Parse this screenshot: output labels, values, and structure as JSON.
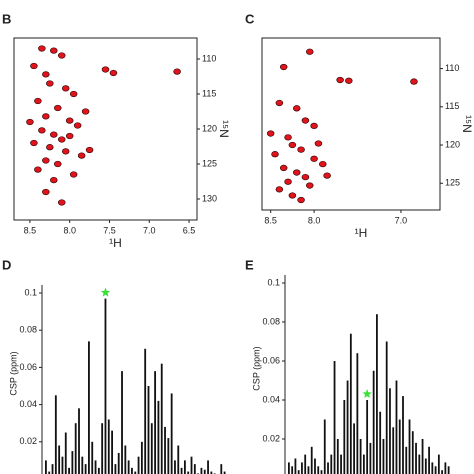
{
  "chart_data": [
    {
      "type": "scatter",
      "panel": "B",
      "xlabel": "¹H",
      "ylabel": "¹⁵N",
      "reverse_x": true,
      "color": "#e3131b",
      "edge": "#3a0a0a",
      "xlim": [
        8.7,
        6.4
      ],
      "ylim": [
        107,
        133
      ],
      "xticks": [
        8.5,
        {
          "value": 8,
          "label": "8.0"
        },
        7.5,
        {
          "value": 7,
          "label": "7.0"
        },
        6.5
      ],
      "yticks": [
        110,
        115,
        120,
        125,
        130
      ],
      "x": [
        8.35,
        8.2,
        8.1,
        8.45,
        8.3,
        8.25,
        8.05,
        7.95,
        8.4,
        8.15,
        8.3,
        8.0,
        7.9,
        8.35,
        8.2,
        8.1,
        8.45,
        8.25,
        8.05,
        7.85,
        8.3,
        8.15,
        8.4,
        7.95,
        8.2,
        7.55,
        7.45,
        6.65,
        7.8,
        8.0,
        8.5,
        8.3,
        7.75,
        8.1
      ],
      "y": [
        108.5,
        108.8,
        109.5,
        111.0,
        112.2,
        113.5,
        114.2,
        115.0,
        116.0,
        117.0,
        118.2,
        118.8,
        119.5,
        120.2,
        120.8,
        121.5,
        122.0,
        122.6,
        123.2,
        123.8,
        124.5,
        125.0,
        125.8,
        126.5,
        127.3,
        111.5,
        112.0,
        111.8,
        117.5,
        121.0,
        119.0,
        129.0,
        123.0,
        130.5
      ]
    },
    {
      "type": "scatter",
      "panel": "C",
      "xlabel": "¹H",
      "ylabel": "¹⁵N",
      "reverse_x": true,
      "color": "#e3131b",
      "edge": "#3a0a0a",
      "xlim": [
        8.6,
        6.55
      ],
      "ylim": [
        106,
        128.5
      ],
      "xticks": [
        8.5,
        {
          "value": 8,
          "label": "8.0"
        },
        {
          "value": 7,
          "label": "7.0"
        }
      ],
      "yticks": [
        110,
        115,
        120,
        125
      ],
      "x": [
        8.35,
        8.05,
        8.4,
        8.2,
        8.1,
        8.3,
        8.25,
        8.15,
        8.45,
        8.0,
        7.9,
        8.35,
        8.2,
        8.1,
        8.3,
        8.05,
        8.4,
        7.95,
        8.25,
        8.15,
        7.7,
        7.6,
        6.85,
        7.85,
        8.5,
        8.0
      ],
      "y": [
        109.8,
        107.8,
        114.5,
        115.2,
        116.8,
        119.0,
        120.0,
        120.6,
        121.2,
        121.8,
        122.5,
        123.0,
        123.6,
        124.2,
        124.8,
        125.3,
        125.8,
        119.8,
        126.6,
        127.2,
        111.5,
        111.6,
        111.7,
        124.0,
        118.5,
        117.5
      ]
    },
    {
      "type": "bar",
      "panel": "D",
      "ylabel": "CSP (ppm)",
      "color": "#111111",
      "ylim": [
        0,
        0.1
      ],
      "yticks": [
        0.02,
        0.04,
        0.06,
        0.08,
        0.1
      ],
      "highlight": {
        "index": 18,
        "color": "#3be03b"
      },
      "values": [
        0.01,
        0.004,
        0.008,
        0.045,
        0.018,
        0.012,
        0.025,
        0.006,
        0.015,
        0.03,
        0.038,
        0.012,
        0.008,
        0.074,
        0.02,
        0.01,
        0.006,
        0.03,
        0.097,
        0.032,
        0.026,
        0.008,
        0.014,
        0.058,
        0.018,
        0.01,
        0.006,
        0.004,
        0.012,
        0.02,
        0.07,
        0.05,
        0.03,
        0.058,
        0.042,
        0.062,
        0.028,
        0.022,
        0.046,
        0.01,
        0.018,
        0.006,
        0.01,
        0.004,
        0.012,
        0.008,
        0.003,
        0.006,
        0.005,
        0.01,
        0.004,
        0.003,
        0.002,
        0.008,
        0.004
      ]
    },
    {
      "type": "bar",
      "panel": "E",
      "ylabel": "CSP (ppm)",
      "color": "#111111",
      "ylim": [
        0,
        0.1
      ],
      "yticks": [
        0.02,
        0.04,
        0.06,
        0.08,
        0.1
      ],
      "highlight": {
        "index": 24,
        "color": "#3be03b"
      },
      "values": [
        0.008,
        0.006,
        0.01,
        0.004,
        0.008,
        0.012,
        0.006,
        0.016,
        0.01,
        0.006,
        0.004,
        0.03,
        0.008,
        0.012,
        0.06,
        0.02,
        0.012,
        0.04,
        0.05,
        0.074,
        0.028,
        0.064,
        0.02,
        0.012,
        0.04,
        0.018,
        0.055,
        0.084,
        0.034,
        0.02,
        0.07,
        0.046,
        0.026,
        0.05,
        0.03,
        0.042,
        0.016,
        0.03,
        0.024,
        0.018,
        0.012,
        0.02,
        0.01,
        0.016,
        0.008,
        0.006,
        0.012,
        0.004,
        0.008,
        0.006
      ]
    }
  ]
}
